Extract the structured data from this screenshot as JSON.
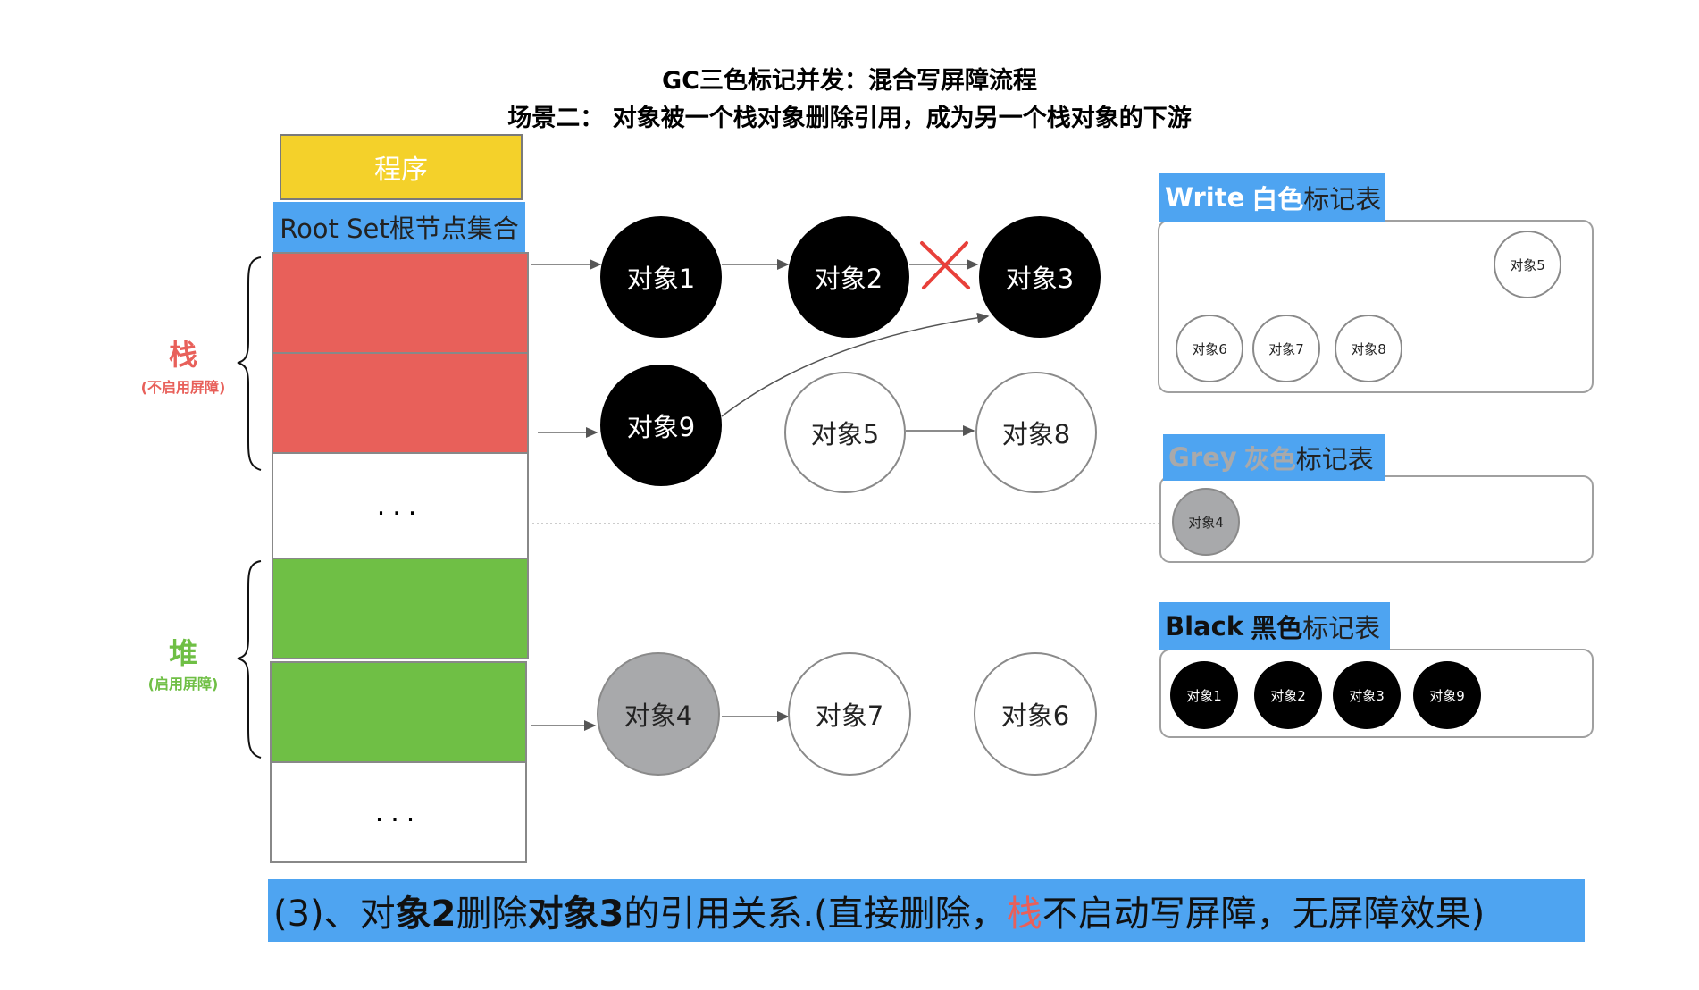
{
  "title": {
    "line1": "GC三色标记并发：混合写屏障流程",
    "line2": "场景二：  对象被一个栈对象删除引用，成为另一个栈对象的下游"
  },
  "program_label": "程序",
  "rootset_label": "Root Set根节点集合",
  "stack": {
    "label": "栈",
    "sublabel": "(不启用屏障)",
    "ellipsis": "..."
  },
  "heap": {
    "label": "堆",
    "sublabel": "(启用屏障)",
    "ellipsis": "..."
  },
  "nodes": {
    "obj1": "对象1",
    "obj2": "对象2",
    "obj3": "对象3",
    "obj9": "对象9",
    "obj5": "对象5",
    "obj8": "对象8",
    "obj4": "对象4",
    "obj7": "对象7",
    "obj6": "对象6"
  },
  "white_table": {
    "title_en": "Write",
    "title_color": "白色",
    "title_suffix": "标记表",
    "items": [
      "对象5",
      "对象6",
      "对象7",
      "对象8"
    ]
  },
  "grey_table": {
    "title_en": "Grey",
    "title_color": "灰色",
    "title_suffix": "标记表",
    "items": [
      "对象4"
    ]
  },
  "black_table": {
    "title_en": "Black",
    "title_color": "黑色",
    "title_suffix": "标记表",
    "items": [
      "对象1",
      "对象2",
      "对象3",
      "对象9"
    ]
  },
  "caption": {
    "part1": "(3)、对",
    "bold1": "象2",
    "part2": "删除",
    "bold2": "对象3",
    "part3": "的引用关系.(直接删除，",
    "red": "栈",
    "part4": "不启动写屏障，无屏障效果)"
  },
  "colors": {
    "program": "#f4d12a",
    "rootset": "#4ea4f1",
    "stack": "#e8605a",
    "heap": "#6fbf45",
    "grey_node": "#a8a9ab",
    "delete_mark": "#e8403a"
  }
}
